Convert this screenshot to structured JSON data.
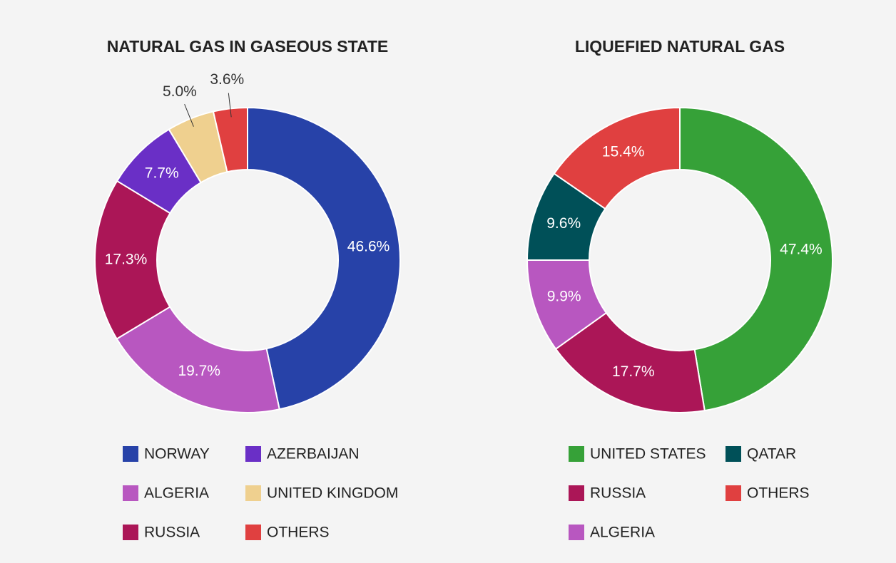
{
  "chart_data": [
    {
      "type": "pie",
      "title": "NATURAL GAS IN GASEOUS STATE",
      "categories": [
        "NORWAY",
        "ALGERIA",
        "RUSSIA",
        "AZERBAIJAN",
        "UNITED KINGDOM",
        "OTHERS"
      ],
      "values": [
        46.6,
        19.7,
        17.3,
        7.7,
        5.0,
        3.6
      ],
      "value_labels": [
        "46.6%",
        "19.7%",
        "17.3%",
        "7.7%",
        "5.0%",
        "3.6%"
      ],
      "colors": [
        "#2742a8",
        "#b857c0",
        "#ab1657",
        "#6a2fc6",
        "#efd08f",
        "#e04040"
      ]
    },
    {
      "type": "pie",
      "title": "LIQUEFIED NATURAL GAS",
      "categories": [
        "UNITED STATES",
        "RUSSIA",
        "ALGERIA",
        "QATAR",
        "OTHERS"
      ],
      "values": [
        47.4,
        17.7,
        9.9,
        9.6,
        15.4
      ],
      "value_labels": [
        "47.4%",
        "17.7%",
        "9.9%",
        "9.6%",
        "15.4%"
      ],
      "colors": [
        "#36a138",
        "#ab1657",
        "#b857c0",
        "#005058",
        "#e04040"
      ]
    }
  ]
}
